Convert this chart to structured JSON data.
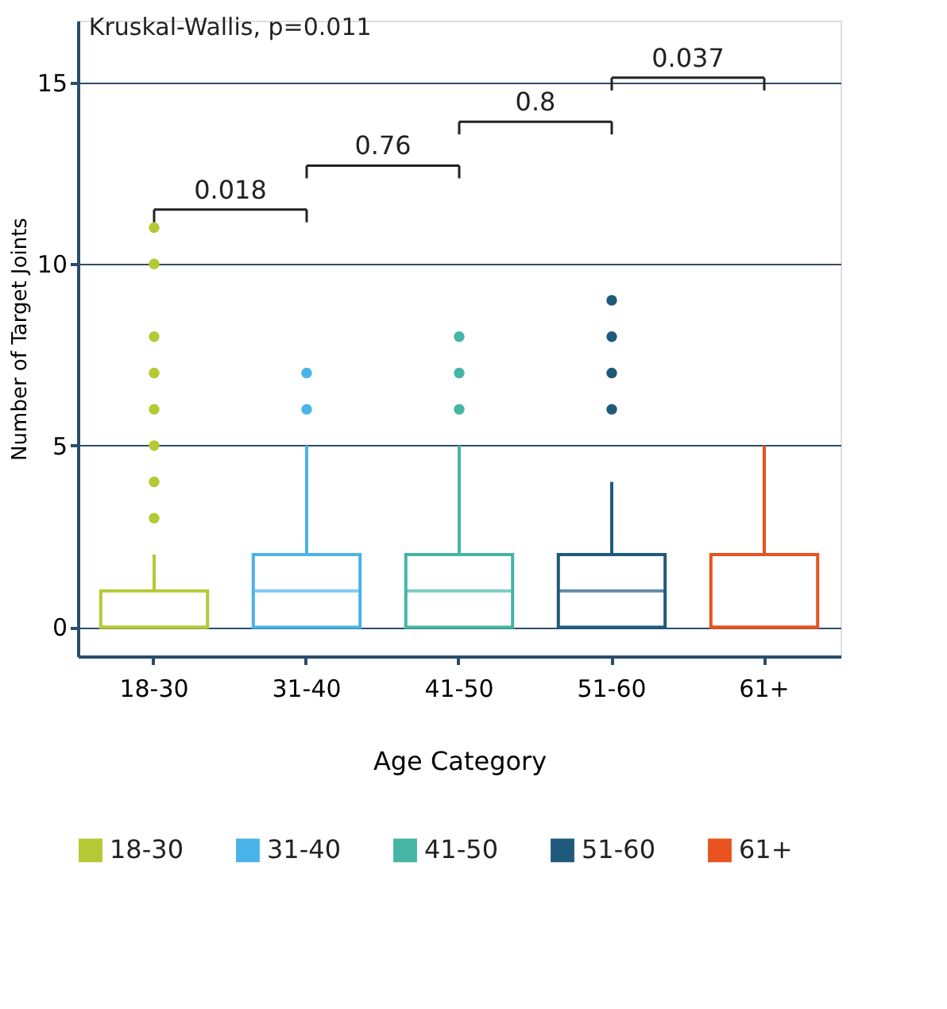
{
  "chart_data": {
    "type": "box",
    "title": "Kruskal-Wallis, p=0.011",
    "xlabel": "Age Category",
    "ylabel": "Number of Target Joints",
    "categories": [
      "18-30",
      "31-40",
      "41-50",
      "51-60",
      "61+"
    ],
    "series": [
      {
        "name": "18-30",
        "color": "#b5c934",
        "boxes": [
          {
            "low": 0,
            "q1": 0,
            "median": 0,
            "q3": 1,
            "high": 2,
            "outliers": [
              3,
              4,
              5,
              6,
              7,
              8,
              10,
              11
            ]
          },
          null,
          null,
          null,
          null
        ]
      },
      {
        "name": "31-40",
        "color": "#4ab3e8",
        "boxes": [
          null,
          {
            "low": 0,
            "q1": 0,
            "median": 1,
            "q3": 2,
            "high": 5,
            "outliers": [
              6,
              7
            ]
          },
          null,
          null,
          null
        ]
      },
      {
        "name": "41-50",
        "color": "#45b5a5",
        "boxes": [
          null,
          null,
          {
            "low": 0,
            "q1": 0,
            "median": 1,
            "q3": 2,
            "high": 5,
            "outliers": [
              6,
              7,
              8
            ]
          },
          null,
          null
        ]
      },
      {
        "name": "51-60",
        "color": "#1f5a7c",
        "boxes": [
          null,
          null,
          null,
          {
            "low": 0,
            "q1": 0,
            "median": 1,
            "q3": 2,
            "high": 4,
            "outliers": [
              6,
              7,
              8,
              9
            ]
          },
          null
        ]
      },
      {
        "name": "61+",
        "color": "#e8531f",
        "boxes": [
          null,
          null,
          null,
          null,
          {
            "low": 0,
            "q1": 0,
            "median": 0,
            "q3": 2,
            "high": 5
          }
        ]
      }
    ],
    "annotations": [
      "0.018",
      "0.76",
      "0.8",
      "0.037"
    ],
    "ylim": [
      -0.8,
      16.7
    ],
    "yticks": [
      0,
      5,
      10,
      15
    ],
    "grid": "y",
    "legend": "bottom"
  }
}
